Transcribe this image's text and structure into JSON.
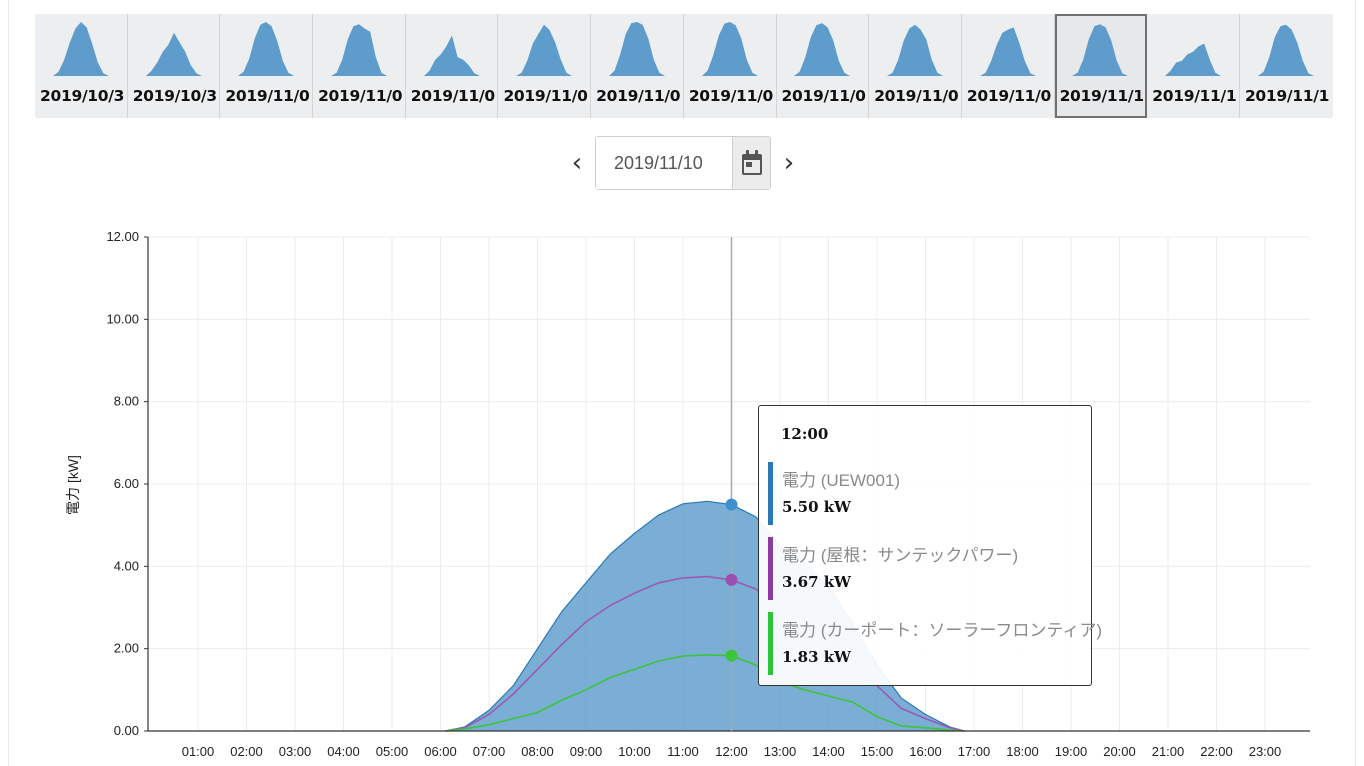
{
  "thumbnails": [
    {
      "label": "2019/10/3",
      "profile": [
        0,
        0.08,
        0.3,
        0.62,
        0.88,
        1.0,
        0.9,
        0.6,
        0.25,
        0.05,
        0
      ]
    },
    {
      "label": "2019/10/3",
      "profile": [
        0,
        0.1,
        0.25,
        0.45,
        0.58,
        0.8,
        0.62,
        0.45,
        0.2,
        0.05,
        0
      ]
    },
    {
      "label": "2019/11/0",
      "profile": [
        0,
        0.08,
        0.32,
        0.7,
        0.95,
        1.0,
        0.92,
        0.65,
        0.28,
        0.06,
        0
      ]
    },
    {
      "label": "2019/11/0",
      "profile": [
        0,
        0.06,
        0.3,
        0.68,
        0.92,
        0.96,
        0.88,
        0.82,
        0.35,
        0.06,
        0
      ]
    },
    {
      "label": "2019/11/0",
      "profile": [
        0,
        0.1,
        0.3,
        0.4,
        0.55,
        0.75,
        0.35,
        0.3,
        0.2,
        0.05,
        0
      ]
    },
    {
      "label": "2019/11/0",
      "profile": [
        0,
        0.06,
        0.28,
        0.6,
        0.78,
        0.95,
        0.85,
        0.62,
        0.3,
        0.06,
        0
      ]
    },
    {
      "label": "2019/11/0",
      "profile": [
        0,
        0.1,
        0.4,
        0.78,
        0.98,
        1.0,
        0.95,
        0.7,
        0.3,
        0.06,
        0
      ]
    },
    {
      "label": "2019/11/0",
      "profile": [
        0,
        0.1,
        0.38,
        0.75,
        0.97,
        1.0,
        0.94,
        0.7,
        0.3,
        0.06,
        0
      ]
    },
    {
      "label": "2019/11/0",
      "profile": [
        0,
        0.08,
        0.34,
        0.72,
        0.94,
        0.98,
        0.9,
        0.66,
        0.28,
        0.06,
        0
      ]
    },
    {
      "label": "2019/11/0",
      "profile": [
        0,
        0.06,
        0.3,
        0.66,
        0.88,
        0.95,
        0.86,
        0.68,
        0.3,
        0.06,
        0
      ]
    },
    {
      "label": "2019/11/0",
      "profile": [
        0,
        0.06,
        0.28,
        0.58,
        0.8,
        0.86,
        0.9,
        0.62,
        0.28,
        0.05,
        0
      ]
    },
    {
      "label": "2019/11/1",
      "profile": [
        0,
        0.06,
        0.3,
        0.68,
        0.92,
        0.96,
        0.9,
        0.66,
        0.28,
        0.05,
        0
      ]
    },
    {
      "label": "2019/11/1",
      "profile": [
        0,
        0.1,
        0.25,
        0.28,
        0.4,
        0.45,
        0.55,
        0.6,
        0.3,
        0.06,
        0
      ]
    },
    {
      "label": "2019/11/1",
      "profile": [
        0,
        0.08,
        0.34,
        0.72,
        0.92,
        0.95,
        0.86,
        0.62,
        0.28,
        0.05,
        0
      ]
    }
  ],
  "selected_thumbnail_index": 11,
  "thumbnail_color": "#5e9ccb",
  "date_nav": {
    "prev_icon": "chevron-left",
    "next_icon": "chevron-right",
    "prev_glyph": "‹",
    "next_glyph": "›",
    "date_value": "2019/11/10",
    "calendar_icon": "calendar-icon"
  },
  "tooltip": {
    "time": "12:00",
    "items": [
      {
        "name": "電力 (UEW001)",
        "value": "5.50 kW",
        "color": "#2b78b5"
      },
      {
        "name": "電力 (屋根：サンテックパワー)",
        "value": "3.67 kW",
        "color": "#8a3c9c"
      },
      {
        "name": "電力 (カーポート：ソーラーフロンティア)",
        "value": "1.83 kW",
        "color": "#2ec43a"
      }
    ]
  },
  "chart_data": {
    "type": "area",
    "ylabel": "電力 [kW]",
    "xlabel": "",
    "ylim": [
      0,
      12
    ],
    "xlim": [
      0,
      24
    ],
    "y_ticks": [
      "0.00",
      "2.00",
      "4.00",
      "6.00",
      "8.00",
      "10.00",
      "12.00"
    ],
    "x_ticks": [
      "01:00",
      "02:00",
      "03:00",
      "04:00",
      "05:00",
      "06:00",
      "07:00",
      "08:00",
      "09:00",
      "10:00",
      "11:00",
      "12:00",
      "13:00",
      "14:00",
      "15:00",
      "16:00",
      "17:00",
      "18:00",
      "19:00",
      "20:00",
      "21:00",
      "22:00",
      "23:00"
    ],
    "grid": true,
    "crosshair_x": 12,
    "series": [
      {
        "name": "電力 (UEW001)",
        "color": "#5e9ccb",
        "fill": true,
        "points": [
          [
            6.1,
            0
          ],
          [
            6.5,
            0.1
          ],
          [
            7.0,
            0.5
          ],
          [
            7.5,
            1.1
          ],
          [
            8.0,
            2.0
          ],
          [
            8.5,
            2.9
          ],
          [
            9.0,
            3.6
          ],
          [
            9.5,
            4.3
          ],
          [
            10.0,
            4.8
          ],
          [
            10.5,
            5.25
          ],
          [
            11.0,
            5.52
          ],
          [
            11.5,
            5.58
          ],
          [
            12.0,
            5.5
          ],
          [
            12.5,
            5.2
          ],
          [
            13.0,
            4.5
          ],
          [
            13.5,
            4.1
          ],
          [
            14.0,
            3.5
          ],
          [
            14.5,
            2.6
          ],
          [
            15.0,
            1.6
          ],
          [
            15.5,
            0.8
          ],
          [
            16.0,
            0.4
          ],
          [
            16.5,
            0.1
          ],
          [
            16.8,
            0
          ]
        ]
      },
      {
        "name": "電力 (屋根：サンテックパワー)",
        "color": "#9b59b6",
        "fill": false,
        "points": [
          [
            6.1,
            0
          ],
          [
            6.5,
            0.08
          ],
          [
            7.0,
            0.4
          ],
          [
            7.5,
            0.9
          ],
          [
            8.0,
            1.5
          ],
          [
            8.5,
            2.1
          ],
          [
            9.0,
            2.65
          ],
          [
            9.5,
            3.05
          ],
          [
            10.0,
            3.35
          ],
          [
            10.5,
            3.6
          ],
          [
            11.0,
            3.72
          ],
          [
            11.5,
            3.75
          ],
          [
            12.0,
            3.67
          ],
          [
            12.5,
            3.45
          ],
          [
            13.0,
            3.05
          ],
          [
            13.5,
            2.7
          ],
          [
            14.0,
            2.3
          ],
          [
            14.5,
            1.75
          ],
          [
            15.0,
            1.1
          ],
          [
            15.5,
            0.55
          ],
          [
            16.0,
            0.3
          ],
          [
            16.5,
            0.08
          ],
          [
            16.8,
            0
          ]
        ]
      },
      {
        "name": "電力 (カーポート：ソーラーフロンティア)",
        "color": "#3cc43c",
        "fill": false,
        "points": [
          [
            6.1,
            0
          ],
          [
            6.5,
            0.05
          ],
          [
            7.0,
            0.15
          ],
          [
            7.5,
            0.3
          ],
          [
            8.0,
            0.45
          ],
          [
            8.5,
            0.75
          ],
          [
            9.0,
            1.0
          ],
          [
            9.5,
            1.3
          ],
          [
            10.0,
            1.5
          ],
          [
            10.5,
            1.7
          ],
          [
            11.0,
            1.82
          ],
          [
            11.5,
            1.85
          ],
          [
            12.0,
            1.83
          ],
          [
            12.5,
            1.6
          ],
          [
            13.0,
            1.2
          ],
          [
            13.5,
            1.0
          ],
          [
            14.0,
            0.85
          ],
          [
            14.5,
            0.7
          ],
          [
            15.0,
            0.35
          ],
          [
            15.5,
            0.12
          ],
          [
            16.0,
            0.08
          ],
          [
            16.5,
            0.02
          ],
          [
            16.8,
            0
          ]
        ]
      }
    ]
  }
}
